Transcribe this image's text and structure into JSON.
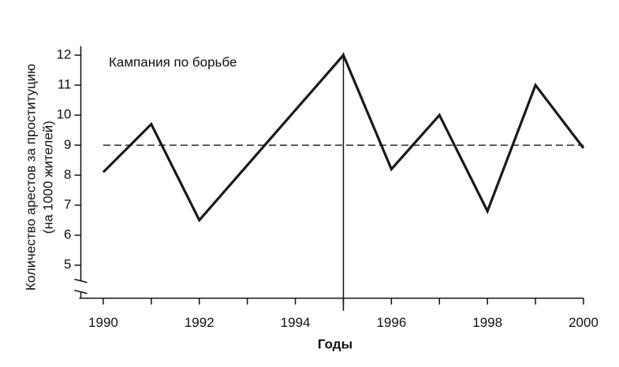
{
  "chart_data": {
    "type": "line",
    "annotation": "Кампания по борьбе",
    "y_label": [
      "Количество арестов за проституцию",
      "(на 1000 жителей)"
    ],
    "x_label": "Годы",
    "x": [
      1990,
      1991,
      1992,
      1995,
      1996,
      1997,
      1998,
      1999,
      2000
    ],
    "values": [
      8.1,
      9.7,
      6.5,
      12,
      8.2,
      10,
      6.8,
      11,
      8.9
    ],
    "color": "#1a1a1a",
    "xlim": [
      1989.5,
      2000
    ],
    "xticks": [
      1990,
      1992,
      1994,
      1996,
      1998,
      2000
    ],
    "x_minor_ticks": [
      1991,
      1993,
      1995,
      1997,
      1999
    ],
    "ylim": [
      3.9,
      12.3
    ],
    "yticks": [
      5,
      6,
      7,
      8,
      9,
      10,
      11,
      12
    ],
    "hline": 9,
    "vline": 1995,
    "grid": false
  }
}
